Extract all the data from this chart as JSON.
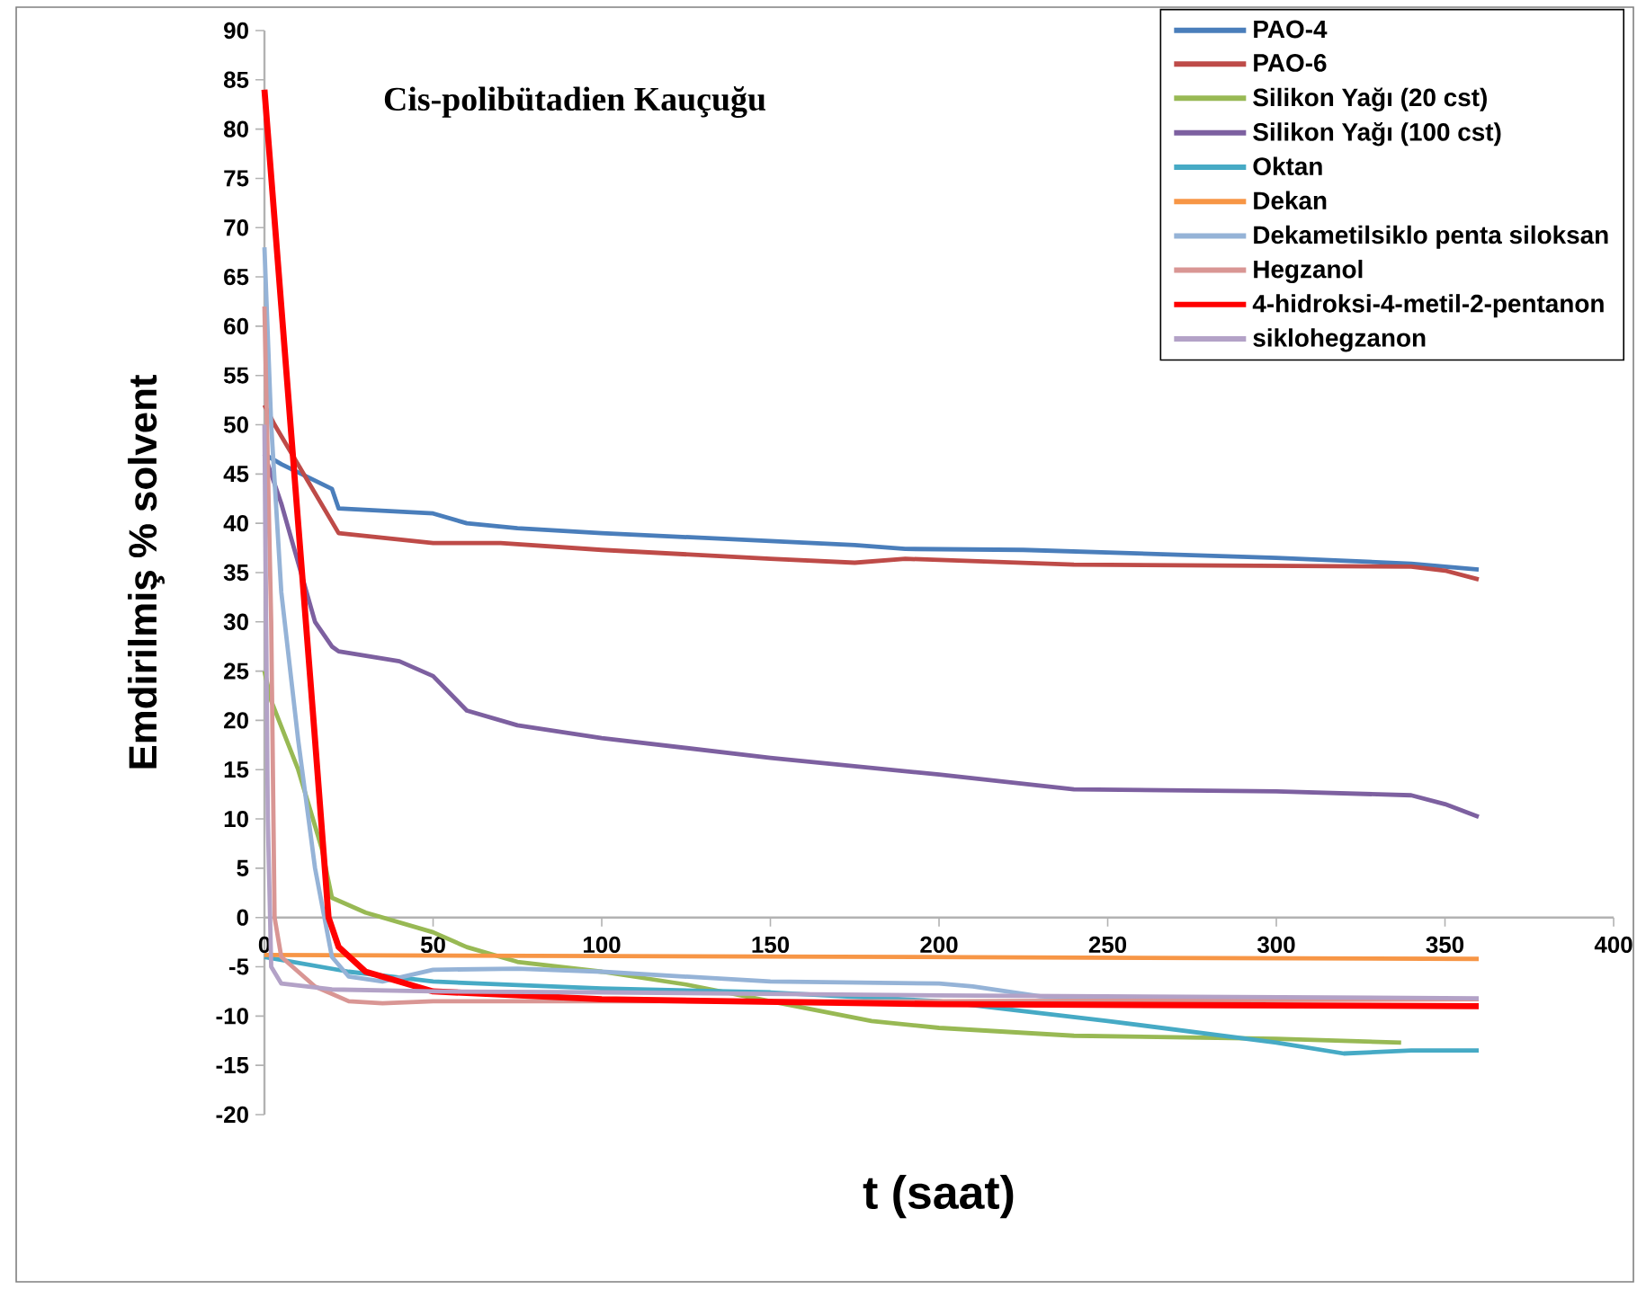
{
  "chart_data": {
    "type": "line",
    "title": "Cis-polibütadien Kauçuğu",
    "xlabel": "t (saat)",
    "ylabel": "Emdirilmiş % solvent",
    "xlim": [
      0,
      400
    ],
    "ylim": [
      -20,
      90
    ],
    "xticks": [
      0,
      50,
      100,
      150,
      200,
      250,
      300,
      350,
      400
    ],
    "yticks": [
      -20,
      -15,
      -10,
      -5,
      0,
      5,
      10,
      15,
      20,
      25,
      30,
      35,
      40,
      45,
      50,
      55,
      60,
      65,
      70,
      75,
      80,
      85,
      90
    ],
    "legend": "top right",
    "series": [
      {
        "name": "PAO-4",
        "color": "#4a7ebb",
        "x": [
          0,
          5,
          20,
          22,
          50,
          60,
          75,
          100,
          150,
          175,
          190,
          225,
          300,
          340,
          360
        ],
        "values": [
          47,
          46,
          43.5,
          41.5,
          41,
          40,
          39.5,
          39,
          38.2,
          37.8,
          37.4,
          37.3,
          36.5,
          35.9,
          35.3
        ]
      },
      {
        "name": "PAO-6",
        "color": "#be4b48",
        "x": [
          0,
          3,
          22,
          50,
          70,
          100,
          150,
          175,
          190,
          240,
          340,
          350,
          360
        ],
        "values": [
          52,
          50,
          39,
          38,
          38,
          37.3,
          36.4,
          36,
          36.4,
          35.8,
          35.6,
          35.2,
          34.3
        ]
      },
      {
        "name": "Silikon Yağı (20 cst)",
        "color": "#98b954",
        "x": [
          0,
          2,
          10,
          17,
          20,
          30,
          50,
          60,
          75,
          100,
          125,
          150,
          180,
          200,
          240,
          300,
          337
        ],
        "values": [
          25,
          22,
          15,
          7,
          2,
          0.5,
          -1.5,
          -3,
          -4.5,
          -5.5,
          -6.8,
          -8.5,
          -10.5,
          -11.2,
          -12,
          -12.3,
          -12.7
        ]
      },
      {
        "name": "Silikon Yağı (100 cst)",
        "color": "#7d60a0",
        "x": [
          0,
          5,
          15,
          20,
          22,
          40,
          50,
          60,
          75,
          100,
          150,
          200,
          240,
          300,
          340,
          350,
          360
        ],
        "values": [
          47,
          42,
          30,
          27.5,
          27,
          26,
          24.5,
          21,
          19.5,
          18.2,
          16.2,
          14.5,
          13,
          12.8,
          12.4,
          11.5,
          10.2
        ]
      },
      {
        "name": "Oktan",
        "color": "#46aac5",
        "x": [
          0,
          25,
          50,
          100,
          150,
          200,
          250,
          300,
          320,
          340,
          360
        ],
        "values": [
          -4,
          -5.5,
          -6.5,
          -7.2,
          -7.6,
          -8.5,
          -10.5,
          -12.7,
          -13.8,
          -13.5,
          -13.5
        ]
      },
      {
        "name": "Dekan",
        "color": "#f79646",
        "x": [
          0,
          360
        ],
        "values": [
          -3.8,
          -4.2
        ]
      },
      {
        "name": "Dekametilsiklo penta siloksan",
        "color": "#95b3d7",
        "x": [
          0,
          2,
          5,
          10,
          15,
          20,
          25,
          35,
          50,
          75,
          100,
          150,
          200,
          210,
          230,
          250,
          360
        ],
        "values": [
          68,
          50,
          33,
          18,
          5,
          -4,
          -6,
          -6.5,
          -5.3,
          -5.2,
          -5.5,
          -6.5,
          -6.7,
          -7,
          -8,
          -8.3,
          -8.3
        ]
      },
      {
        "name": "Hegzanol",
        "color": "#d99694",
        "x": [
          0,
          2,
          3,
          5,
          15,
          25,
          35,
          50,
          100,
          200,
          360
        ],
        "values": [
          62,
          30,
          0,
          -4,
          -7,
          -8.5,
          -8.7,
          -8.5,
          -8.5,
          -8.5,
          -8.3
        ]
      },
      {
        "name": "4-hidroksi-4-metil-2-pentanon",
        "color": "#ff0000",
        "x": [
          0,
          5,
          10,
          15,
          19,
          22,
          30,
          50,
          100,
          200,
          360
        ],
        "values": [
          84,
          62,
          40,
          18,
          0,
          -3,
          -5.5,
          -7.5,
          -8.3,
          -8.8,
          -9
        ]
      },
      {
        "name": "siklohegzanon",
        "color": "#b3a2c7",
        "x": [
          0,
          1,
          2,
          5,
          20,
          50,
          100,
          200,
          360
        ],
        "values": [
          50,
          10,
          -5,
          -6.7,
          -7.3,
          -7.5,
          -7.6,
          -7.9,
          -8.2
        ]
      }
    ]
  }
}
